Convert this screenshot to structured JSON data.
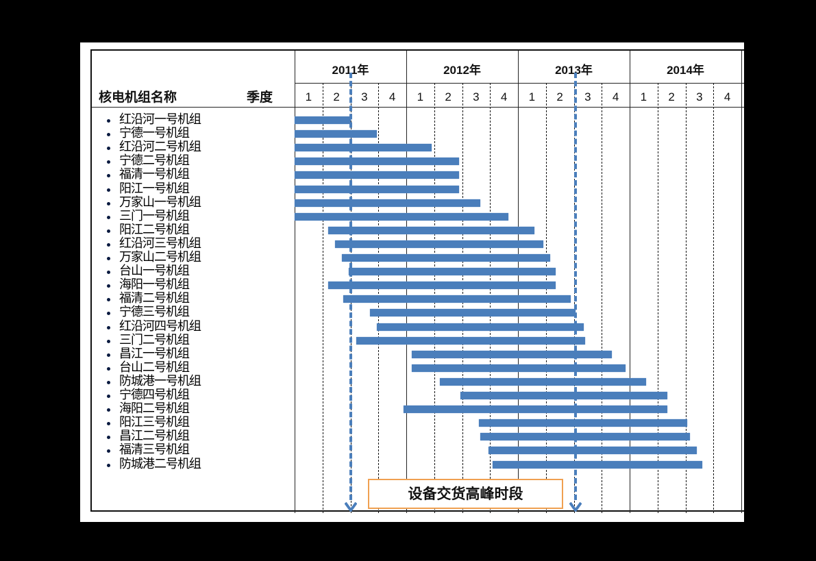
{
  "chart_data": {
    "type": "gantt",
    "title": "",
    "header": {
      "name_col": "核电机组名称",
      "quarter_col": "季度"
    },
    "years": [
      "2011年",
      "2012年",
      "2013年",
      "2014年"
    ],
    "quarters": [
      "1",
      "2",
      "3",
      "4",
      "1",
      "2",
      "3",
      "4",
      "1",
      "2",
      "3",
      "4",
      "1",
      "2",
      "3",
      "4"
    ],
    "x_unit": "quarter index from 2011 Q1 start (0) to 2014 Q4 end (16)",
    "xlim": [
      0,
      16
    ],
    "tasks": [
      {
        "name": "红沿河一号机组",
        "start": 0.0,
        "end": 2.0
      },
      {
        "name": "宁德一号机组",
        "start": 0.0,
        "end": 2.95
      },
      {
        "name": "红沿河二号机组",
        "start": 0.0,
        "end": 4.9
      },
      {
        "name": "宁德二号机组",
        "start": 0.0,
        "end": 5.9
      },
      {
        "name": "福清一号机组",
        "start": 0.0,
        "end": 5.9
      },
      {
        "name": "阳江一号机组",
        "start": 0.0,
        "end": 5.9
      },
      {
        "name": "万家山一号机组",
        "start": 0.0,
        "end": 6.65
      },
      {
        "name": "三门一号机组",
        "start": 0.0,
        "end": 7.65
      },
      {
        "name": "阳江二号机组",
        "start": 1.2,
        "end": 8.6
      },
      {
        "name": "红沿河三号机组",
        "start": 1.45,
        "end": 8.9
      },
      {
        "name": "万家山二号机组",
        "start": 1.7,
        "end": 9.15
      },
      {
        "name": "台山一号机组",
        "start": 1.95,
        "end": 9.35
      },
      {
        "name": "海阳一号机组",
        "start": 1.2,
        "end": 9.35
      },
      {
        "name": "福清二号机组",
        "start": 1.75,
        "end": 9.9
      },
      {
        "name": "宁德三号机组",
        "start": 2.7,
        "end": 10.05
      },
      {
        "name": "红沿河四号机组",
        "start": 2.95,
        "end": 10.35
      },
      {
        "name": "三门二号机组",
        "start": 2.2,
        "end": 10.4
      },
      {
        "name": "昌江一号机组",
        "start": 4.2,
        "end": 11.35
      },
      {
        "name": "台山二号机组",
        "start": 4.2,
        "end": 11.85
      },
      {
        "name": "防城港一号机组",
        "start": 5.2,
        "end": 12.6
      },
      {
        "name": "宁德四号机组",
        "start": 5.95,
        "end": 13.35
      },
      {
        "name": "海阳二号机组",
        "start": 3.9,
        "end": 13.35
      },
      {
        "name": "阳江三号机组",
        "start": 6.6,
        "end": 14.05
      },
      {
        "name": "昌江二号机组",
        "start": 6.65,
        "end": 14.15
      },
      {
        "name": "福清三号机组",
        "start": 6.95,
        "end": 14.4
      },
      {
        "name": "防城港二号机组",
        "start": 7.1,
        "end": 14.6
      }
    ],
    "annotations": {
      "peak_period_label": "设备交货高峰时段",
      "peak_start": 2.0,
      "peak_end": 10.05
    },
    "colors": {
      "bar": "#4a7ebb",
      "callout_border": "#f0a050",
      "peak_line": "#4a7ebb"
    },
    "grid": {
      "year_lines": "solid",
      "quarter_lines": "dashed"
    },
    "legend": "none"
  }
}
